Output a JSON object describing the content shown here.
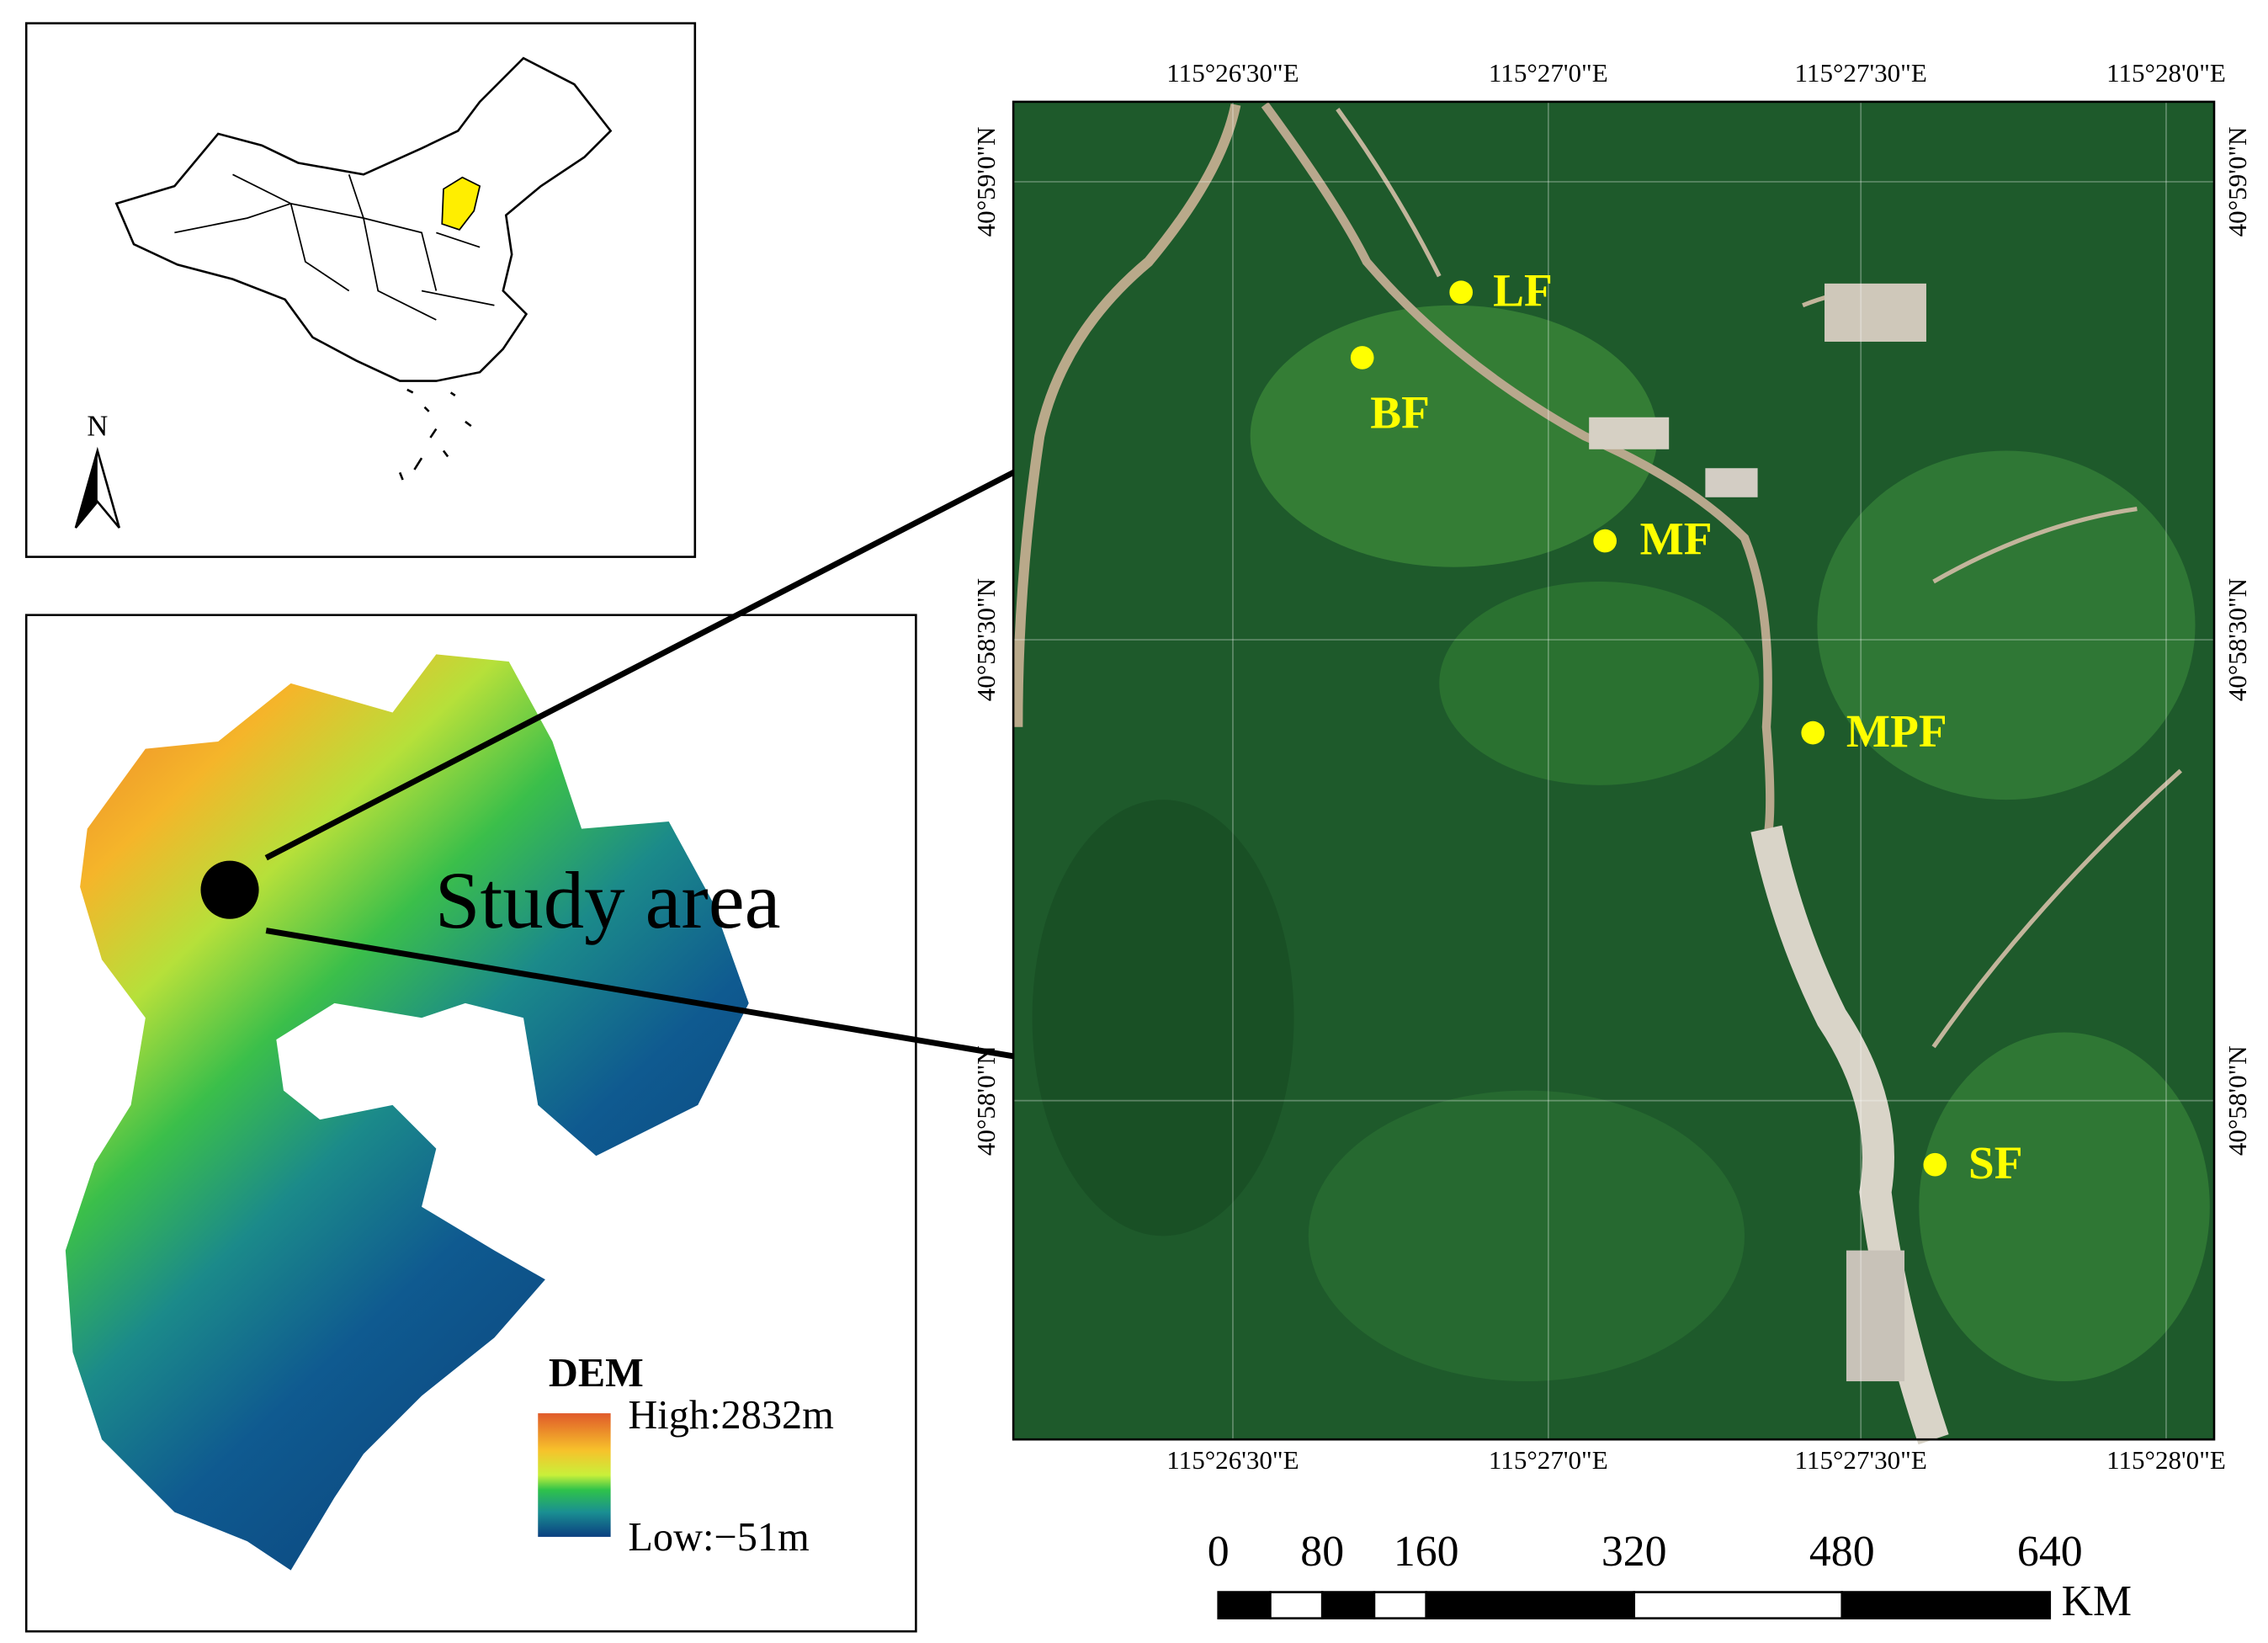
{
  "inset_map": {
    "north_label": "N"
  },
  "study_area": {
    "label": "Study area",
    "legend": {
      "title": "DEM",
      "high": "High:2832m",
      "low": "Low:−51m"
    }
  },
  "satellite": {
    "top_labels": [
      "115°26'30\"E",
      "115°27'0\"E",
      "115°27'30\"E",
      "115°28'0\"E"
    ],
    "bottom_labels": [
      "115°26'30\"E",
      "115°27'0\"E",
      "115°27'30\"E",
      "115°28'0\"E"
    ],
    "left_labels": [
      "40°59'0\"N",
      "40°58'30\"N",
      "40°58'0\"N"
    ],
    "right_labels": [
      "40°59'0\"N",
      "40°58'30\"N",
      "40°58'0\"N"
    ],
    "sites": [
      "LF",
      "BF",
      "MF",
      "MPF",
      "SF"
    ]
  },
  "scale_bar": {
    "ticks": [
      0,
      80,
      160,
      320,
      480,
      640
    ],
    "unit": "KM"
  }
}
